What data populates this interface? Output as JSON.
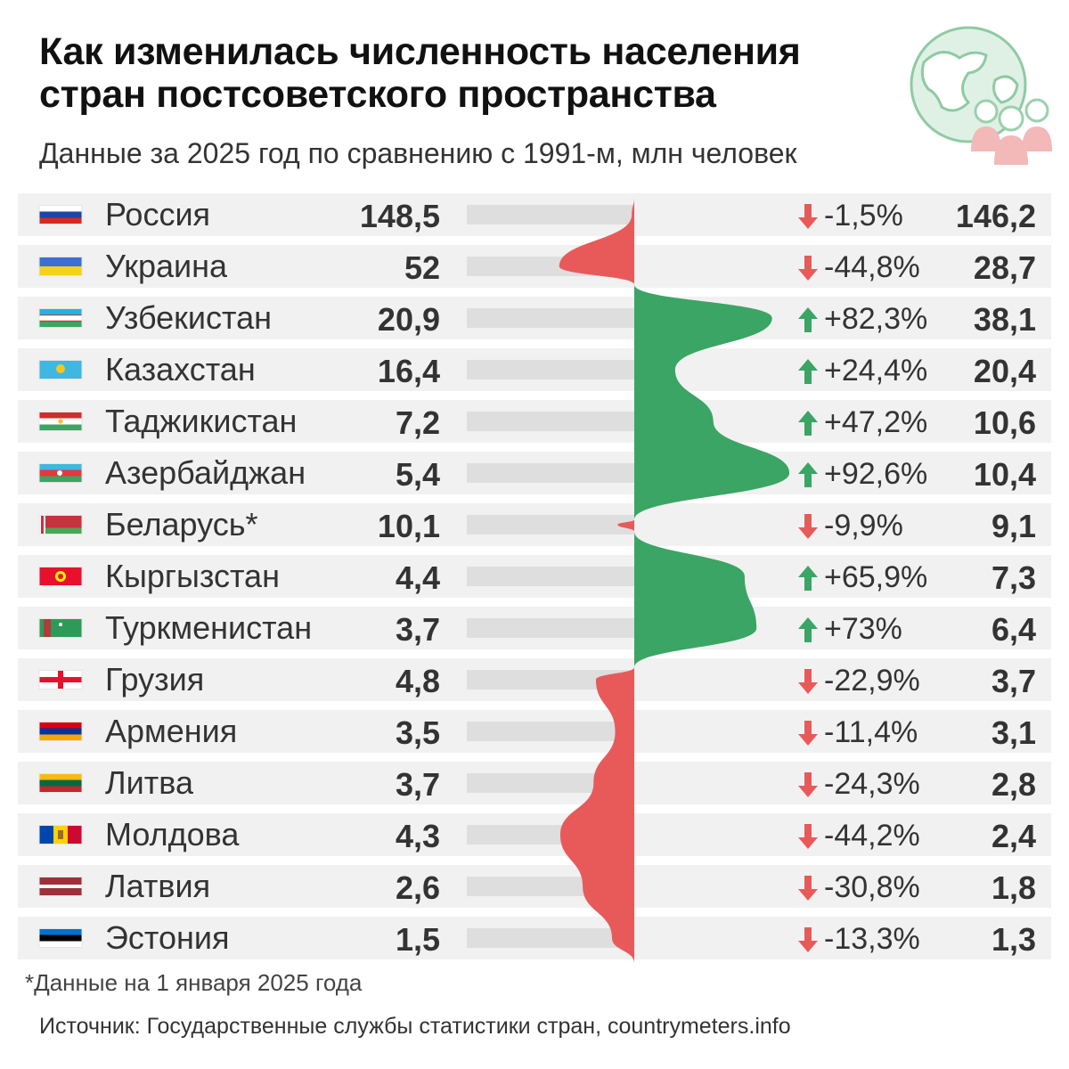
{
  "title": "Как изменилась численность населения стран постсоветского пространства",
  "subtitle": "Данные за 2025 год по сравнению с 1991-м, млн человек",
  "footnote": "*Данные на 1 января 2025 года",
  "source": "Источник: Государственные службы статистики стран, countrymeters.info",
  "colors": {
    "decrease": "#e85a5a",
    "increase": "#3aa564",
    "stripe": "#f1f1f1",
    "track": "#dedede"
  },
  "chart_data": {
    "type": "table",
    "columns": [
      "country",
      "population_1991",
      "change_percent",
      "population_2025"
    ],
    "rows": [
      {
        "country": "Россия",
        "flag": "russia-flag",
        "v1991": "148,5",
        "pct": "-1,5%",
        "v2025": "146,2",
        "change": -1.5
      },
      {
        "country": "Украина",
        "flag": "ukraine-flag",
        "v1991": "52",
        "pct": "-44,8%",
        "v2025": "28,7",
        "change": -44.8
      },
      {
        "country": "Узбекистан",
        "flag": "uzbekistan-flag",
        "v1991": "20,9",
        "pct": "+82,3%",
        "v2025": "38,1",
        "change": 82.3
      },
      {
        "country": "Казахстан",
        "flag": "kazakhstan-flag",
        "v1991": "16,4",
        "pct": "+24,4%",
        "v2025": "20,4",
        "change": 24.4
      },
      {
        "country": "Таджикистан",
        "flag": "tajikistan-flag",
        "v1991": "7,2",
        "pct": "+47,2%",
        "v2025": "10,6",
        "change": 47.2
      },
      {
        "country": "Азербайджан",
        "flag": "azerbaijan-flag",
        "v1991": "5,4",
        "pct": "+92,6%",
        "v2025": "10,4",
        "change": 92.6
      },
      {
        "country": "Беларусь*",
        "flag": "belarus-flag",
        "v1991": "10,1",
        "pct": "-9,9%",
        "v2025": "9,1",
        "change": -9.9
      },
      {
        "country": "Кыргызстан",
        "flag": "kyrgyzstan-flag",
        "v1991": "4,4",
        "pct": "+65,9%",
        "v2025": "7,3",
        "change": 65.9
      },
      {
        "country": "Туркменистан",
        "flag": "turkmenistan-flag",
        "v1991": "3,7",
        "pct": "+73%",
        "v2025": "6,4",
        "change": 73
      },
      {
        "country": "Грузия",
        "flag": "georgia-flag",
        "v1991": "4,8",
        "pct": "-22,9%",
        "v2025": "3,7",
        "change": -22.9
      },
      {
        "country": "Армения",
        "flag": "armenia-flag",
        "v1991": "3,5",
        "pct": "-11,4%",
        "v2025": "3,1",
        "change": -11.4
      },
      {
        "country": "Литва",
        "flag": "lithuania-flag",
        "v1991": "3,7",
        "pct": "-24,3%",
        "v2025": "2,8",
        "change": -24.3
      },
      {
        "country": "Молдова",
        "flag": "moldova-flag",
        "v1991": "4,3",
        "pct": "-44,2%",
        "v2025": "2,4",
        "change": -44.2
      },
      {
        "country": "Латвия",
        "flag": "latvia-flag",
        "v1991": "2,6",
        "pct": "-30,8%",
        "v2025": "1,8",
        "change": -30.8
      },
      {
        "country": "Эстония",
        "flag": "estonia-flag",
        "v1991": "1,5",
        "pct": "-13,3%",
        "v2025": "1,3",
        "change": -13.3
      }
    ]
  }
}
